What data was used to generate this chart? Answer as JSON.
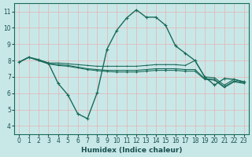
{
  "background_color": "#c8e8e8",
  "grid_color": "#e8b0b0",
  "line_color": "#1a6b5a",
  "xlabel": "Humidex (Indice chaleur)",
  "ylim": [
    3.5,
    11.5
  ],
  "xlim": [
    -0.5,
    23.5
  ],
  "yticks": [
    4,
    5,
    6,
    7,
    8,
    9,
    10,
    11
  ],
  "xticks": [
    0,
    1,
    2,
    3,
    4,
    5,
    6,
    7,
    8,
    9,
    10,
    11,
    12,
    13,
    14,
    15,
    16,
    17,
    18,
    19,
    20,
    21,
    22,
    23
  ],
  "series_main": [
    7.9,
    8.2,
    8.05,
    7.85,
    6.6,
    5.9,
    4.75,
    4.45,
    6.05,
    8.7,
    9.85,
    10.6,
    11.1,
    10.65,
    10.65,
    10.15,
    8.9,
    8.45,
    8.0,
    7.0,
    6.5,
    6.9,
    6.85,
    6.7
  ],
  "series_flat1": [
    7.9,
    8.2,
    8.05,
    7.85,
    7.85,
    7.8,
    7.75,
    7.7,
    7.65,
    7.65,
    7.65,
    7.65,
    7.65,
    7.7,
    7.75,
    7.75,
    7.75,
    7.7,
    8.0,
    7.0,
    6.95,
    6.5,
    6.85,
    6.7
  ],
  "series_flat2": [
    7.9,
    8.2,
    8.0,
    7.8,
    7.75,
    7.7,
    7.6,
    7.5,
    7.45,
    7.4,
    7.4,
    7.4,
    7.4,
    7.45,
    7.5,
    7.5,
    7.5,
    7.45,
    7.45,
    6.9,
    6.85,
    6.4,
    6.75,
    6.65
  ],
  "series_flat3": [
    7.9,
    8.2,
    8.0,
    7.8,
    7.7,
    7.65,
    7.55,
    7.45,
    7.38,
    7.33,
    7.3,
    7.3,
    7.3,
    7.35,
    7.4,
    7.4,
    7.4,
    7.35,
    7.35,
    6.85,
    6.8,
    6.35,
    6.7,
    6.6
  ]
}
